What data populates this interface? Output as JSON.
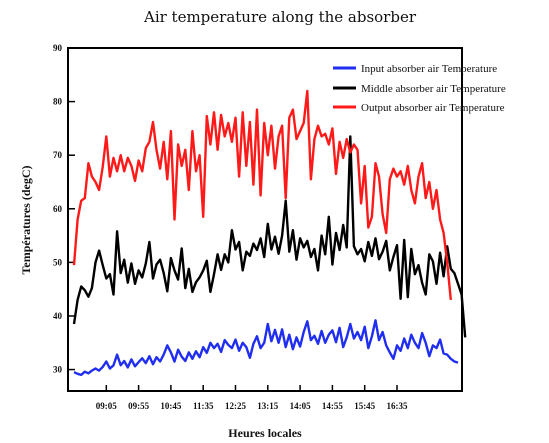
{
  "chart_data": {
    "type": "line",
    "title": "Air temperature along the absorber",
    "xlabel": "Heures locales",
    "ylabel": "Températures (degC)",
    "ylim": [
      26,
      90
    ],
    "y_ticks": [
      30,
      40,
      50,
      60,
      70,
      80,
      90
    ],
    "x_ticks": [
      "09:05",
      "09:55",
      "10:45",
      "11:35",
      "12:25",
      "13:15",
      "14:05",
      "14:55",
      "15:45",
      "16:35"
    ],
    "x_tick_index": [
      9,
      18,
      27,
      36,
      45,
      54,
      63,
      72,
      81,
      90
    ],
    "legend_position": "top-right",
    "grid": false,
    "series": [
      {
        "name": "Input absorber air Temperature",
        "color": "#1f2ef0",
        "values": [
          29.5,
          29.2,
          29.0,
          29.6,
          29.3,
          29.8,
          30.2,
          29.8,
          30.5,
          31.5,
          30.2,
          30.8,
          32.8,
          30.8,
          31.6,
          30.4,
          31.9,
          30.6,
          31.4,
          32.1,
          31.2,
          32.5,
          31.0,
          32.3,
          31.5,
          32.8,
          34.5,
          33.2,
          31.5,
          33.7,
          32.4,
          31.6,
          33.2,
          32.0,
          33.4,
          32.3,
          34.2,
          33.1,
          35.0,
          34.0,
          34.8,
          33.3,
          35.5,
          34.6,
          34.0,
          35.6,
          33.5,
          35.0,
          34.2,
          32.2,
          34.8,
          36.2,
          34.0,
          35.0,
          38.5,
          35.3,
          37.4,
          35.0,
          37.5,
          34.2,
          36.5,
          33.8,
          36.0,
          34.3,
          37.0,
          39.0,
          35.5,
          36.3,
          34.8,
          37.2,
          35.0,
          36.5,
          37.3,
          35.1,
          37.8,
          34.2,
          36.0,
          38.5,
          35.8,
          37.0,
          35.5,
          38.0,
          34.0,
          36.2,
          39.2,
          35.5,
          37.0,
          34.5,
          33.2,
          32.0,
          34.5,
          33.5,
          35.8,
          34.0,
          36.5,
          35.0,
          34.0,
          36.8,
          35.0,
          32.5,
          34.5,
          34.0,
          35.6,
          33.0,
          32.8,
          32.0,
          31.5,
          31.3
        ]
      },
      {
        "name": "Middle absorber air Temperature",
        "color": "#000000",
        "values": [
          38.5,
          43.0,
          45.5,
          44.8,
          43.6,
          45.2,
          50.0,
          52.2,
          49.5,
          47.0,
          47.8,
          44.0,
          55.8,
          48.0,
          50.5,
          46.2,
          49.8,
          46.0,
          48.5,
          47.2,
          49.8,
          53.8,
          47.0,
          49.6,
          50.5,
          48.0,
          44.6,
          50.8,
          48.5,
          46.8,
          52.6,
          45.2,
          48.8,
          44.5,
          46.3,
          47.2,
          48.5,
          50.3,
          44.5,
          47.8,
          51.5,
          48.6,
          51.5,
          50.0,
          56.0,
          52.4,
          53.8,
          48.5,
          52.0,
          51.2,
          53.5,
          52.3,
          54.5,
          51.0,
          57.2,
          52.4,
          54.8,
          51.6,
          55.0,
          61.5,
          52.0,
          56.0,
          50.5,
          54.5,
          52.8,
          54.0,
          51.0,
          52.5,
          48.5,
          55.0,
          51.5,
          58.5,
          49.6,
          55.5,
          52.3,
          57.0,
          52.8,
          73.5,
          53.0,
          51.5,
          52.5,
          50.2,
          53.8,
          51.2,
          54.5,
          50.6,
          52.0,
          54.0,
          48.5,
          51.0,
          53.2,
          43.2,
          54.2,
          43.5,
          52.5,
          47.8,
          49.5,
          46.2,
          44.0,
          51.5,
          50.2,
          46.0,
          51.8,
          47.4,
          53.0,
          48.8,
          48.0,
          46.0,
          44.0,
          36.0
        ]
      },
      {
        "name": "Output absorber air Temperature",
        "color": "#ff1a1a",
        "values": [
          49.5,
          58.0,
          61.5,
          62.0,
          68.5,
          66.0,
          65.0,
          63.5,
          67.8,
          73.5,
          66.0,
          69.5,
          67.0,
          70.0,
          67.0,
          69.5,
          68.0,
          65.2,
          69.0,
          67.0,
          71.3,
          72.5,
          76.2,
          71.0,
          67.5,
          72.5,
          65.5,
          74.5,
          58.0,
          72.0,
          68.0,
          71.0,
          63.5,
          74.5,
          67.0,
          70.0,
          58.5,
          77.3,
          72.0,
          78.0,
          71.0,
          77.5,
          73.5,
          76.0,
          72.5,
          77.0,
          66.0,
          78.0,
          68.0,
          76.2,
          64.5,
          78.5,
          62.5,
          76.0,
          70.0,
          75.5,
          67.5,
          73.5,
          75.5,
          62.0,
          77.0,
          78.5,
          73.0,
          74.5,
          76.0,
          82.0,
          65.5,
          73.0,
          75.5,
          73.5,
          74.0,
          72.0,
          75.0,
          66.5,
          72.5,
          69.5,
          73.0,
          70.5,
          72.0,
          71.0,
          61.0,
          68.0,
          56.5,
          58.5,
          68.5,
          66.0,
          59.0,
          55.5,
          65.5,
          67.5,
          66.0,
          67.0,
          64.5,
          68.0,
          63.5,
          61.0,
          66.0,
          68.5,
          62.0,
          65.0,
          60.0,
          63.5,
          58.0,
          55.5,
          50.0,
          43.0
        ]
      }
    ]
  }
}
